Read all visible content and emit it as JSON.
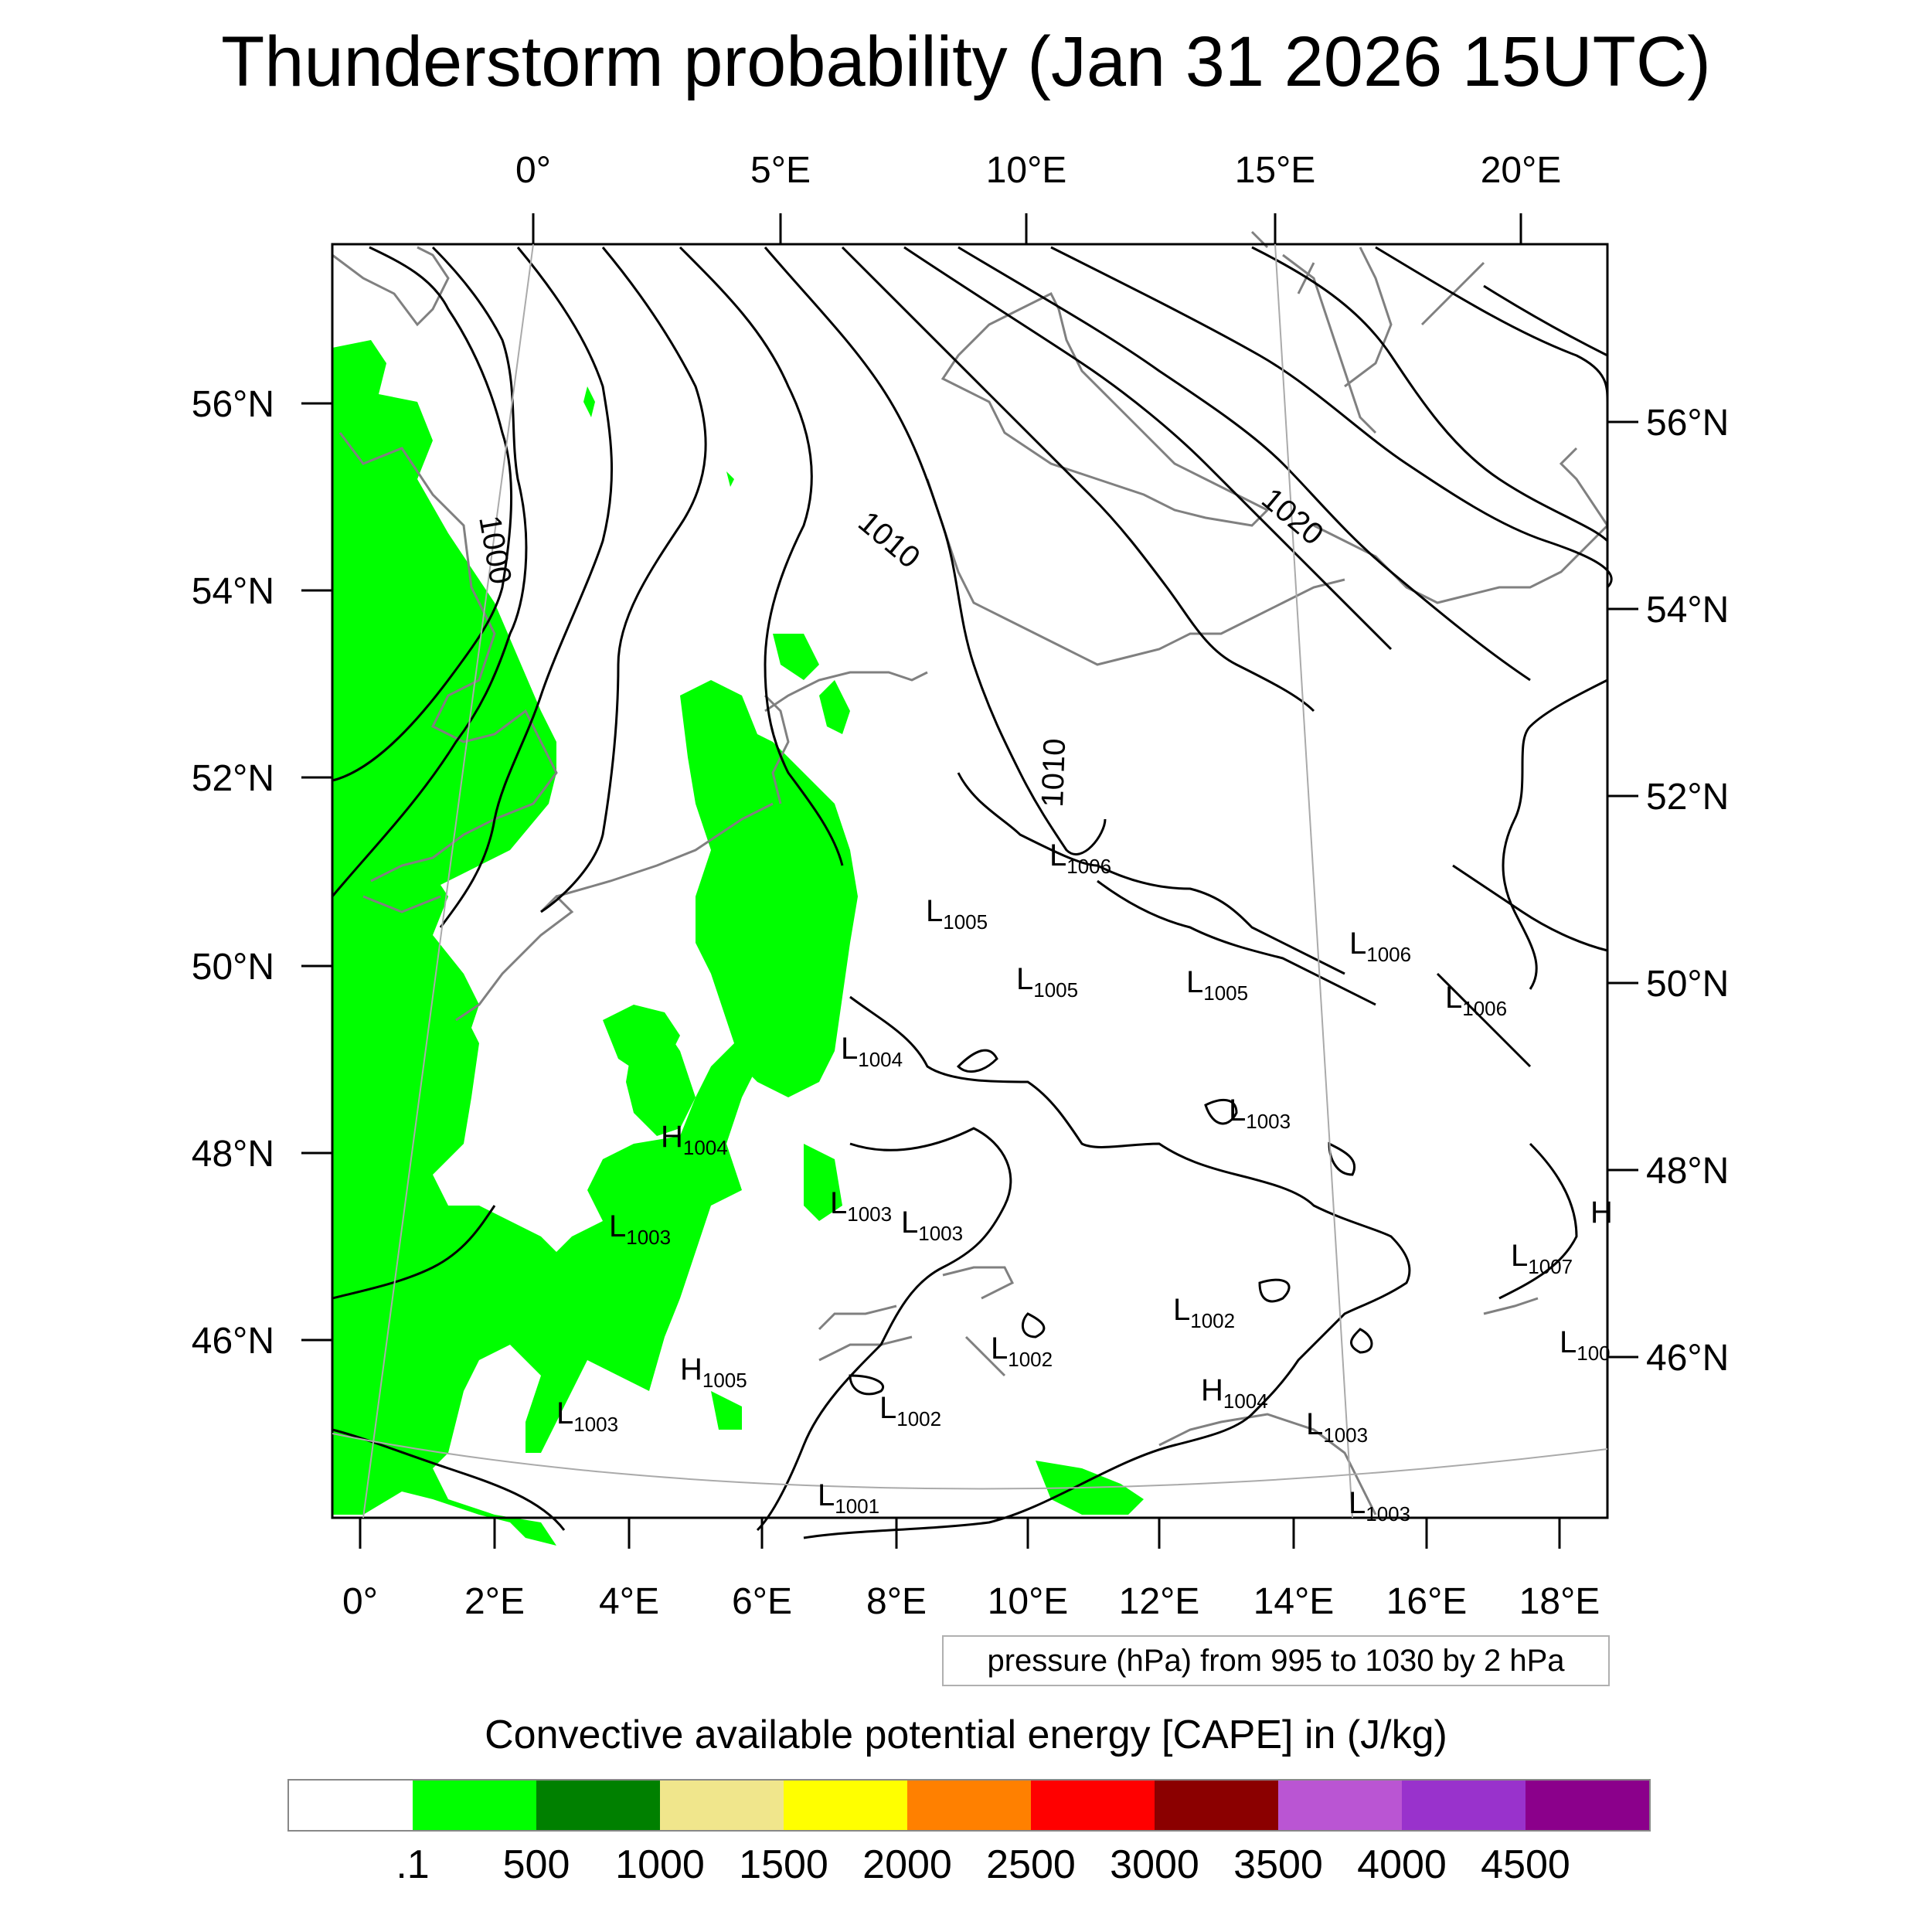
{
  "title": "Thunderstorm probability (Jan 31 2026 15UTC)",
  "top_lon_labels": [
    "0°",
    "5°E",
    "10°E",
    "15°E",
    "20°E"
  ],
  "left_lat_labels": [
    "56°N",
    "54°N",
    "52°N",
    "50°N",
    "48°N",
    "46°N"
  ],
  "right_lat_labels": [
    "56°N",
    "54°N",
    "52°N",
    "50°N",
    "48°N",
    "46°N"
  ],
  "bottom_lon_labels": [
    "0°",
    "2°E",
    "4°E",
    "6°E",
    "8°E",
    "10°E",
    "12°E",
    "14°E",
    "16°E",
    "18°E"
  ],
  "contour_labels": [
    "1000",
    "1010",
    "1020",
    "1010"
  ],
  "pressure_centers": [
    {
      "type": "L",
      "value": "1005"
    },
    {
      "type": "L",
      "value": "1006"
    },
    {
      "type": "L",
      "value": "1006"
    },
    {
      "type": "L",
      "value": "1006"
    },
    {
      "type": "L",
      "value": "1005"
    },
    {
      "type": "L",
      "value": "1005"
    },
    {
      "type": "L",
      "value": "1004"
    },
    {
      "type": "L",
      "value": "1003"
    },
    {
      "type": "H",
      "value": "1004"
    },
    {
      "type": "L",
      "value": "1003"
    },
    {
      "type": "L",
      "value": "1003"
    },
    {
      "type": "L",
      "value": "1003"
    },
    {
      "type": "L",
      "value": "1007"
    },
    {
      "type": "L",
      "value": "1002"
    },
    {
      "type": "L",
      "value": "1002"
    },
    {
      "type": "L",
      "value": "1002"
    },
    {
      "type": "H",
      "value": "1005"
    },
    {
      "type": "H",
      "value": "1004"
    },
    {
      "type": "L",
      "value": "1003"
    },
    {
      "type": "L",
      "value": "1003"
    },
    {
      "type": "L",
      "value": "1001"
    },
    {
      "type": "L",
      "value": "1003"
    },
    {
      "type": "L",
      "value": "100"
    },
    {
      "type": "H",
      "value": ""
    }
  ],
  "contour_info": "pressure (hPa) from 995 to 1030 by 2 hPa",
  "colorbar_title": "Convective available potential energy [CAPE] in (J/kg)",
  "colorbar_colors": [
    "#ffffff",
    "#00ff00",
    "#008000",
    "#f0e68c",
    "#ffff00",
    "#ff8000",
    "#ff0000",
    "#8b0000",
    "#ba55d3",
    "#9932cc",
    "#8b008b"
  ],
  "colorbar_labels": [
    ".1",
    "500",
    "1000",
    "1500",
    "2000",
    "2500",
    "3000",
    "3500",
    "4000",
    "4500"
  ],
  "colors": {
    "cape_green": "#00ff00",
    "isobar": "#000000",
    "coast": "#808080"
  }
}
